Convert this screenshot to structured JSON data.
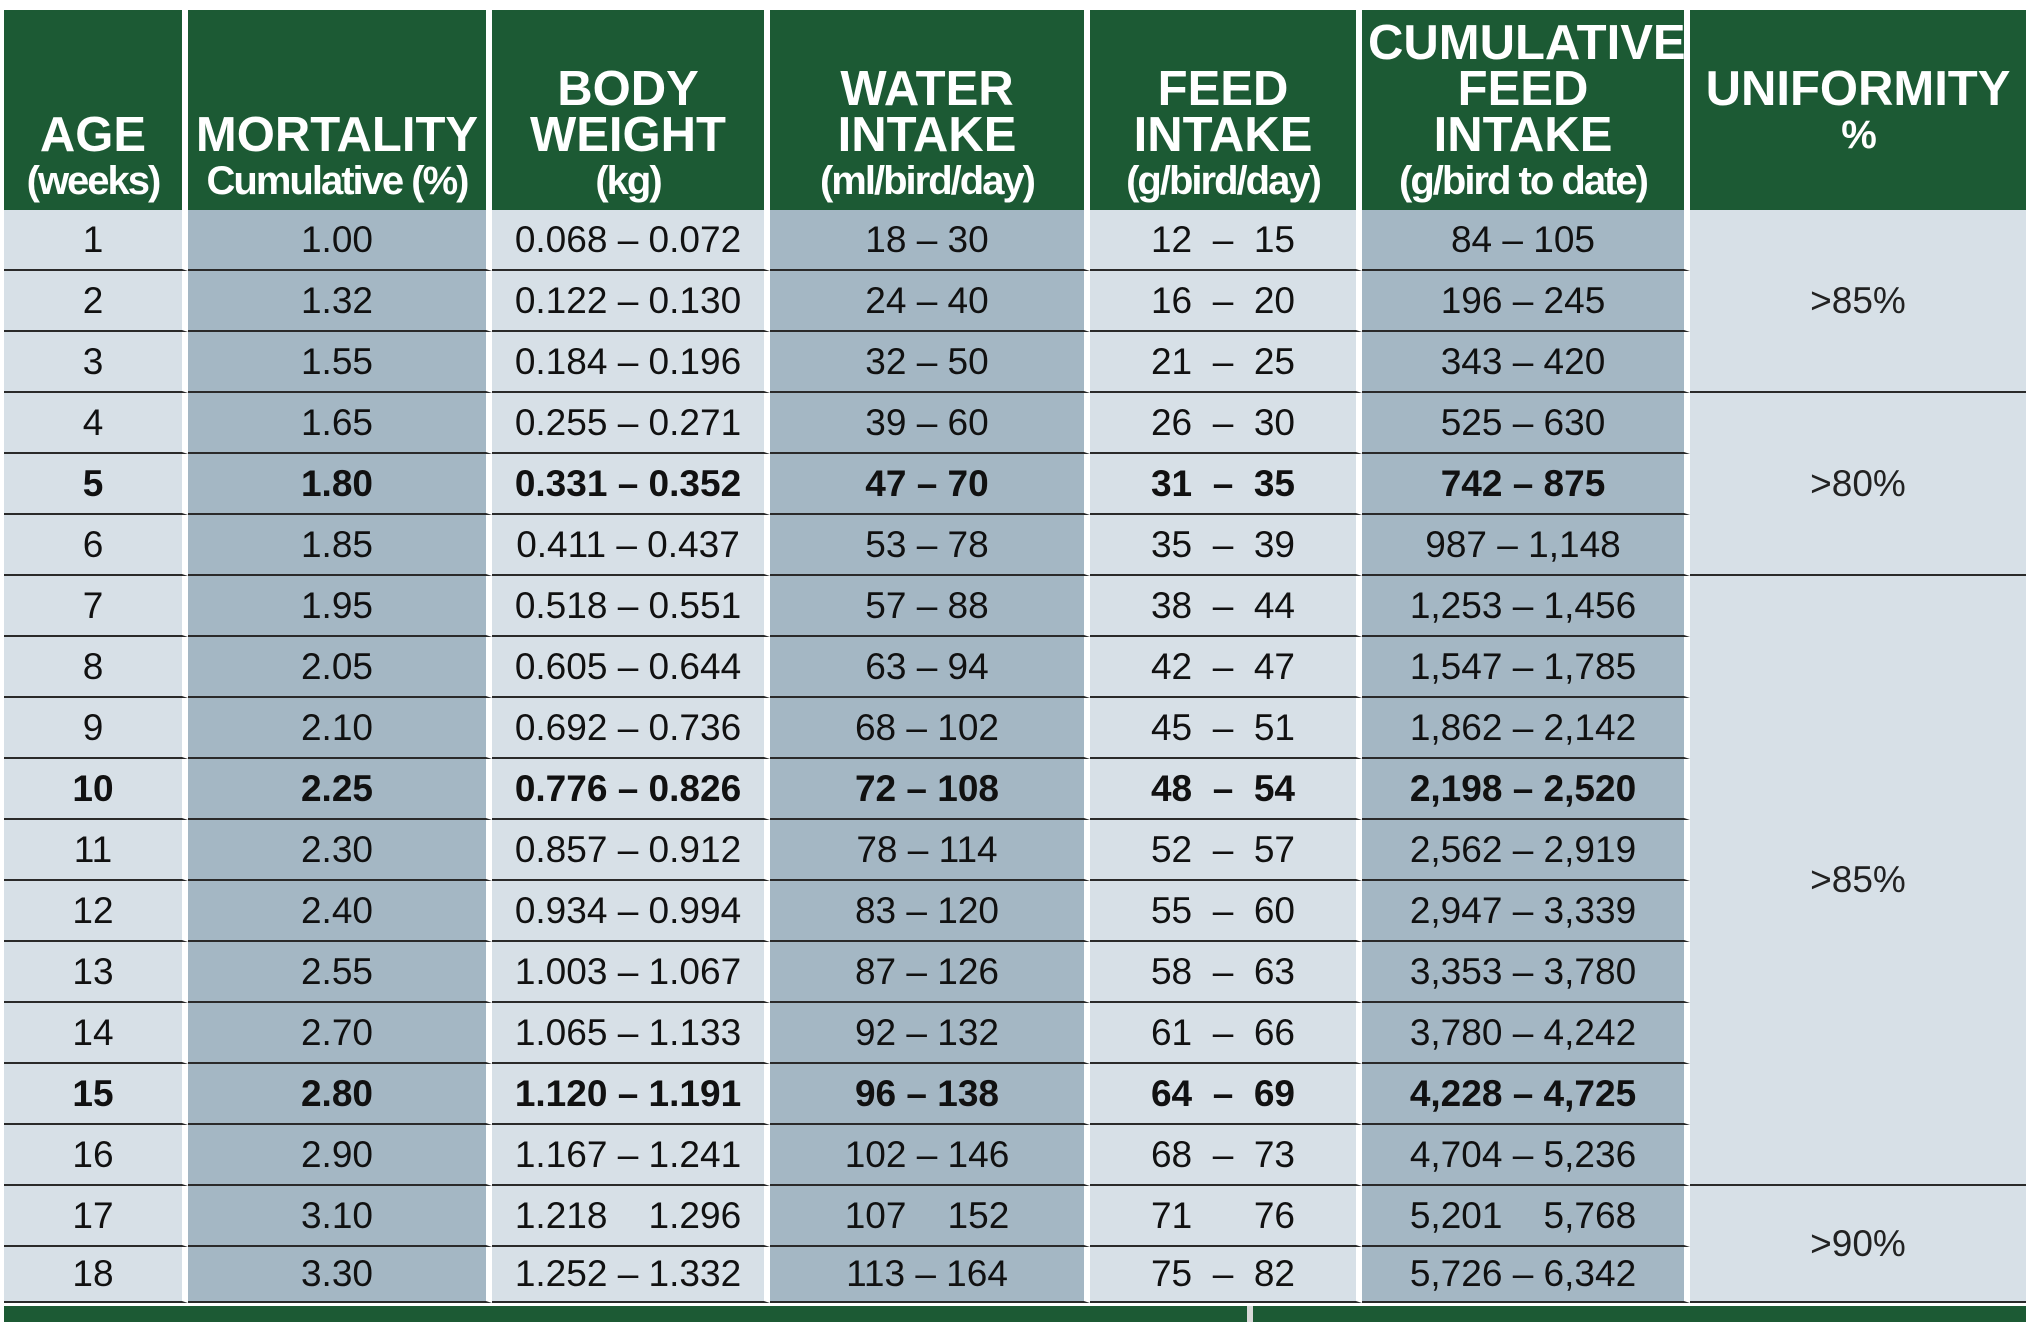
{
  "headers": [
    {
      "main": "AGE",
      "sub": "(weeks)"
    },
    {
      "main": "MORTALITY",
      "sub": "Cumulative (%)"
    },
    {
      "main": "BODY\nWEIGHT",
      "sub": "(kg)"
    },
    {
      "main": "WATER\nINTAKE",
      "sub": "(ml/bird/day)"
    },
    {
      "main": "FEED\nINTAKE",
      "sub": "(g/bird/day)"
    },
    {
      "main": "CUMULATIVE\nFEED\nINTAKE",
      "sub": "(g/bird to date)"
    },
    {
      "main": "UNIFORMITY",
      "sub": "%"
    }
  ],
  "rows": [
    {
      "age": "1",
      "mortality": "1.00",
      "body_weight": "0.068 – 0.072",
      "water": "18 – 30",
      "feed": "12  –  15",
      "cumulative": "84 – 105",
      "bold": false
    },
    {
      "age": "2",
      "mortality": "1.32",
      "body_weight": "0.122 – 0.130",
      "water": "24 – 40",
      "feed": "16  –  20",
      "cumulative": "196 – 245",
      "bold": false
    },
    {
      "age": "3",
      "mortality": "1.55",
      "body_weight": "0.184 – 0.196",
      "water": "32 – 50",
      "feed": "21  –  25",
      "cumulative": "343 – 420",
      "bold": false
    },
    {
      "age": "4",
      "mortality": "1.65",
      "body_weight": "0.255 – 0.271",
      "water": "39 – 60",
      "feed": "26  –  30",
      "cumulative": "525 – 630",
      "bold": false
    },
    {
      "age": "5",
      "mortality": "1.80",
      "body_weight": "0.331 – 0.352",
      "water": "47 – 70",
      "feed": "31  –  35",
      "cumulative": "742 – 875",
      "bold": true
    },
    {
      "age": "6",
      "mortality": "1.85",
      "body_weight": "0.411 – 0.437",
      "water": "53 – 78",
      "feed": "35  –  39",
      "cumulative": "987 – 1,148",
      "bold": false
    },
    {
      "age": "7",
      "mortality": "1.95",
      "body_weight": "0.518 – 0.551",
      "water": "57 – 88",
      "feed": "38  –  44",
      "cumulative": "1,253 – 1,456",
      "bold": false
    },
    {
      "age": "8",
      "mortality": "2.05",
      "body_weight": "0.605 – 0.644",
      "water": "63 – 94",
      "feed": "42  –  47",
      "cumulative": "1,547 – 1,785",
      "bold": false
    },
    {
      "age": "9",
      "mortality": "2.10",
      "body_weight": "0.692 – 0.736",
      "water": "68 – 102",
      "feed": "45  –  51",
      "cumulative": "1,862 – 2,142",
      "bold": false
    },
    {
      "age": "10",
      "mortality": "2.25",
      "body_weight": "0.776 – 0.826",
      "water": "72 – 108",
      "feed": "48  –  54",
      "cumulative": "2,198 – 2,520",
      "bold": true
    },
    {
      "age": "11",
      "mortality": "2.30",
      "body_weight": "0.857 – 0.912",
      "water": "78 – 114",
      "feed": "52  –  57",
      "cumulative": "2,562 – 2,919",
      "bold": false
    },
    {
      "age": "12",
      "mortality": "2.40",
      "body_weight": "0.934 – 0.994",
      "water": "83 – 120",
      "feed": "55  –  60",
      "cumulative": "2,947 – 3,339",
      "bold": false
    },
    {
      "age": "13",
      "mortality": "2.55",
      "body_weight": "1.003 – 1.067",
      "water": "87 – 126",
      "feed": "58  –  63",
      "cumulative": "3,353 – 3,780",
      "bold": false
    },
    {
      "age": "14",
      "mortality": "2.70",
      "body_weight": "1.065 – 1.133",
      "water": "92 – 132",
      "feed": "61  –  66",
      "cumulative": "3,780 – 4,242",
      "bold": false
    },
    {
      "age": "15",
      "mortality": "2.80",
      "body_weight": "1.120 – 1.191",
      "water": "96 – 138",
      "feed": "64  –  69",
      "cumulative": "4,228 – 4,725",
      "bold": true
    },
    {
      "age": "16",
      "mortality": "2.90",
      "body_weight": "1.167 – 1.241",
      "water": "102 – 146",
      "feed": "68  –  73",
      "cumulative": "4,704 – 5,236",
      "bold": false
    },
    {
      "age": "17",
      "mortality": "3.10",
      "body_weight": "1.218    1.296",
      "water": "107    152",
      "feed": "71      76",
      "cumulative": "5,201    5,768",
      "bold": false
    },
    {
      "age": "18",
      "mortality": "3.30",
      "body_weight": "1.252 – 1.332",
      "water": "113 – 164",
      "feed": "75  –  82",
      "cumulative": "5,726 – 6,342",
      "bold": false
    }
  ],
  "uniformity": [
    {
      "value": ">85%",
      "rows": 3
    },
    {
      "value": ">80%",
      "rows": 3
    },
    {
      "value": ">85%",
      "rows": 10
    },
    {
      "value": ">90%",
      "rows": 2
    }
  ],
  "colors": {
    "header_green": "#1c5a34",
    "cell_light": "#d7e0e7",
    "cell_dark": "#a4b7c4"
  }
}
